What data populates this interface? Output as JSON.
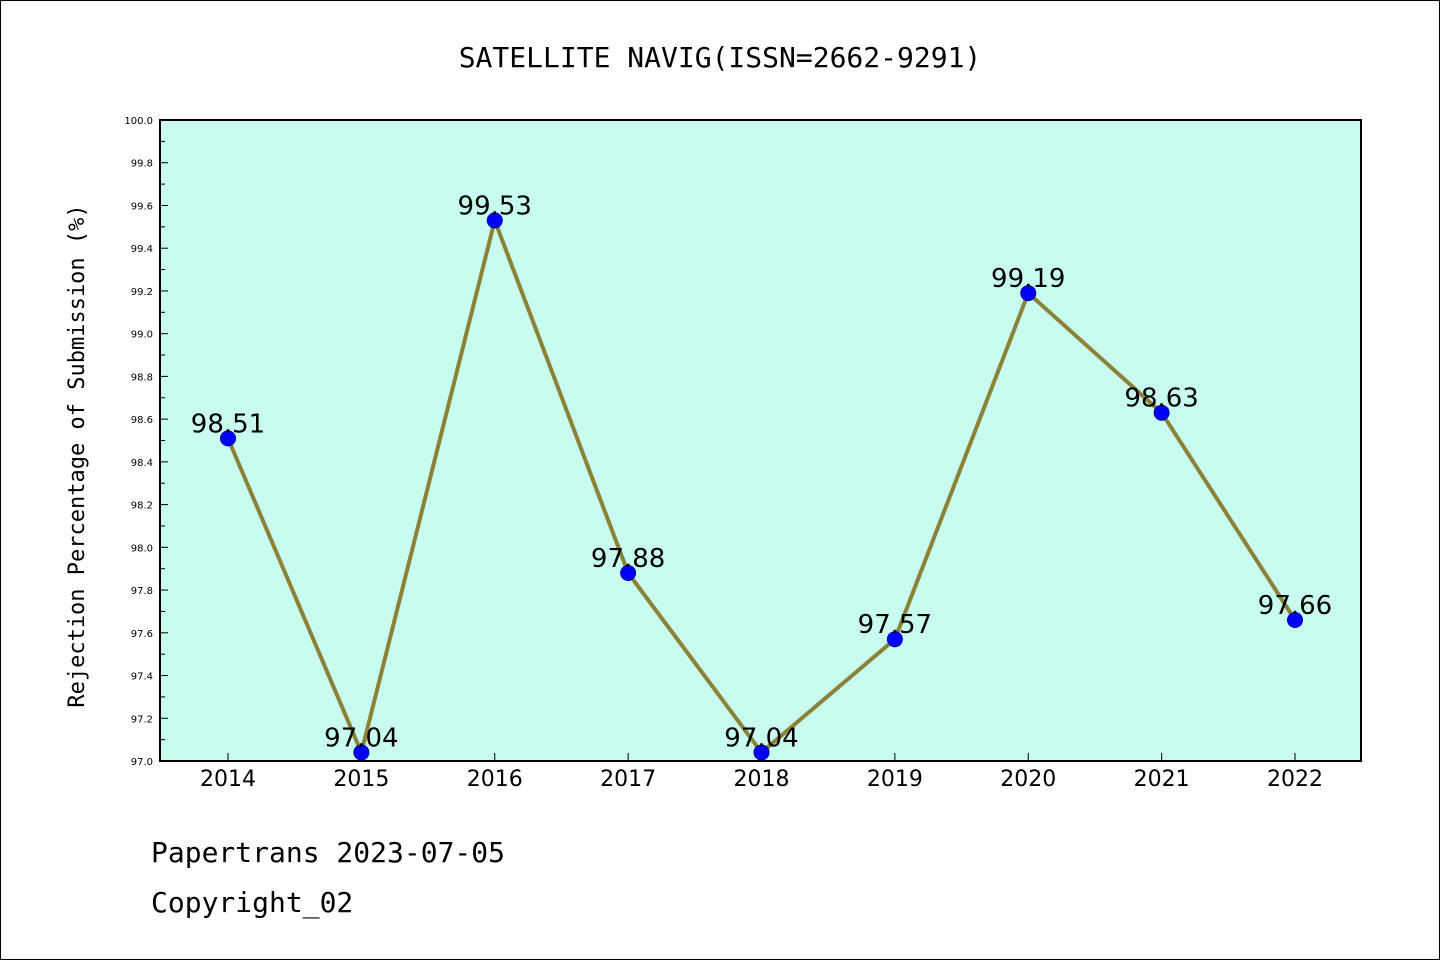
{
  "chart_data": {
    "type": "line",
    "title": "SATELLITE NAVIG(ISSN=2662-9291)",
    "xlabel": "",
    "ylabel": "Rejection Percentage of Submission (%)",
    "categories": [
      "2014",
      "2015",
      "2016",
      "2017",
      "2018",
      "2019",
      "2020",
      "2021",
      "2022"
    ],
    "values": [
      98.51,
      97.04,
      99.53,
      97.88,
      97.04,
      97.57,
      99.19,
      98.63,
      97.66
    ],
    "data_labels": [
      "98.51",
      "97.04",
      "99.53",
      "97.88",
      "97.04",
      "97.57",
      "99.19",
      "98.63",
      "97.66"
    ],
    "ylim": [
      97.0,
      100.0
    ],
    "y_ticks": [
      "97.0",
      "97.2",
      "97.4",
      "97.6",
      "97.8",
      "98.0",
      "98.2",
      "98.4",
      "98.6",
      "98.8",
      "99.0",
      "99.2",
      "99.4",
      "99.6",
      "99.8",
      "100.0"
    ],
    "grid": false,
    "legend": "none",
    "colors": {
      "plot_background": "#c8fcee",
      "line": "#8b8237",
      "marker": "#0000ff"
    }
  },
  "footer": {
    "line1": "Papertrans 2023-07-05",
    "line2": "Copyright_02"
  }
}
